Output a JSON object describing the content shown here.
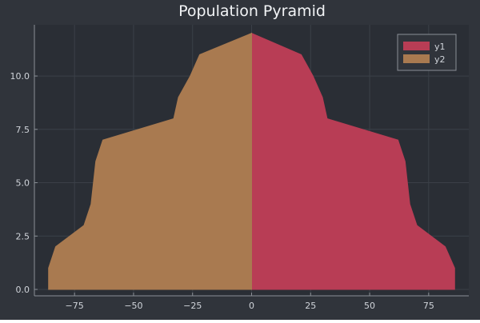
{
  "colors": {
    "background": "#30343b",
    "plot_background": "#2a2e35",
    "grid": "#3b4048",
    "axis": "#8a8f96",
    "text": "#d0d4da",
    "title": "#f2f4f6",
    "y1_fill": "#b83d55",
    "y2_fill": "#a97a50",
    "legend_background": "#30343b",
    "legend_border": "#8a8f96"
  },
  "chart_data": {
    "type": "area",
    "title": "Population Pyramid",
    "xlabel": "",
    "ylabel": "",
    "xlim": [
      -92,
      92
    ],
    "ylim": [
      -0.3,
      12.4
    ],
    "grid": true,
    "legend_position": "top-right",
    "x_ticks": [
      -75,
      -50,
      -25,
      0,
      25,
      50,
      75
    ],
    "x_tick_labels": [
      "−75",
      "−50",
      "−25",
      "0",
      "25",
      "50",
      "75"
    ],
    "y_ticks": [
      0,
      2.5,
      5,
      7.5,
      10
    ],
    "y_tick_labels": [
      "0.0",
      "2.5",
      "5.0",
      "7.5",
      "10.0"
    ],
    "series": [
      {
        "name": "y1",
        "color": "#b83d55",
        "points": [
          [
            86,
            0
          ],
          [
            86,
            1
          ],
          [
            82,
            2
          ],
          [
            70,
            3
          ],
          [
            67,
            4
          ],
          [
            66,
            5
          ],
          [
            65,
            6
          ],
          [
            62,
            7
          ],
          [
            32,
            8
          ],
          [
            30,
            9
          ],
          [
            26,
            10
          ],
          [
            21,
            11
          ],
          [
            0,
            12
          ]
        ]
      },
      {
        "name": "y2",
        "color": "#a97a50",
        "points": [
          [
            -86,
            0
          ],
          [
            -86,
            1
          ],
          [
            -83,
            2
          ],
          [
            -71,
            3
          ],
          [
            -68,
            4
          ],
          [
            -67,
            5
          ],
          [
            -66,
            6
          ],
          [
            -63,
            7
          ],
          [
            -33,
            8
          ],
          [
            -31,
            9
          ],
          [
            -26,
            10
          ],
          [
            -22,
            11
          ],
          [
            0,
            12
          ]
        ]
      }
    ]
  }
}
